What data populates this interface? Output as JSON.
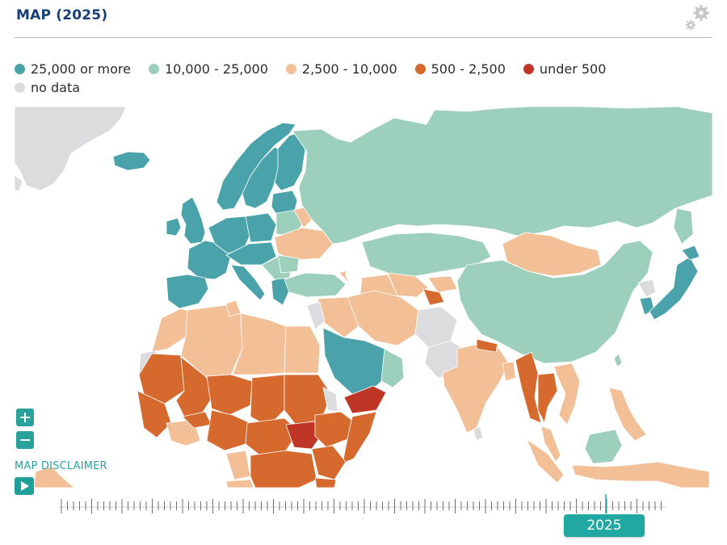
{
  "header": {
    "title": "MAP (2025)",
    "settings_icon": "gear-icon"
  },
  "legend": {
    "items": [
      {
        "label": "25,000 or more",
        "color": "#4aa3ab"
      },
      {
        "label": "10,000 - 25,000",
        "color": "#9dd0bc"
      },
      {
        "label": "2,500 - 10,000",
        "color": "#f2bf96"
      },
      {
        "label": "500 - 2,500",
        "color": "#d5692e"
      },
      {
        "label": "under 500",
        "color": "#bf3526"
      },
      {
        "label": "no data",
        "color": "#dcdcdf"
      }
    ]
  },
  "map": {
    "colors": {
      "ocean": "#ffffff",
      "border": "#ffffff"
    },
    "zoom_in_icon": "plus-icon",
    "zoom_out_icon": "minus-icon"
  },
  "disclaimer": {
    "label": "MAP DISCLAIMER"
  },
  "playback": {
    "play_icon": "play-icon"
  },
  "timeline": {
    "selected_year": "2025"
  }
}
